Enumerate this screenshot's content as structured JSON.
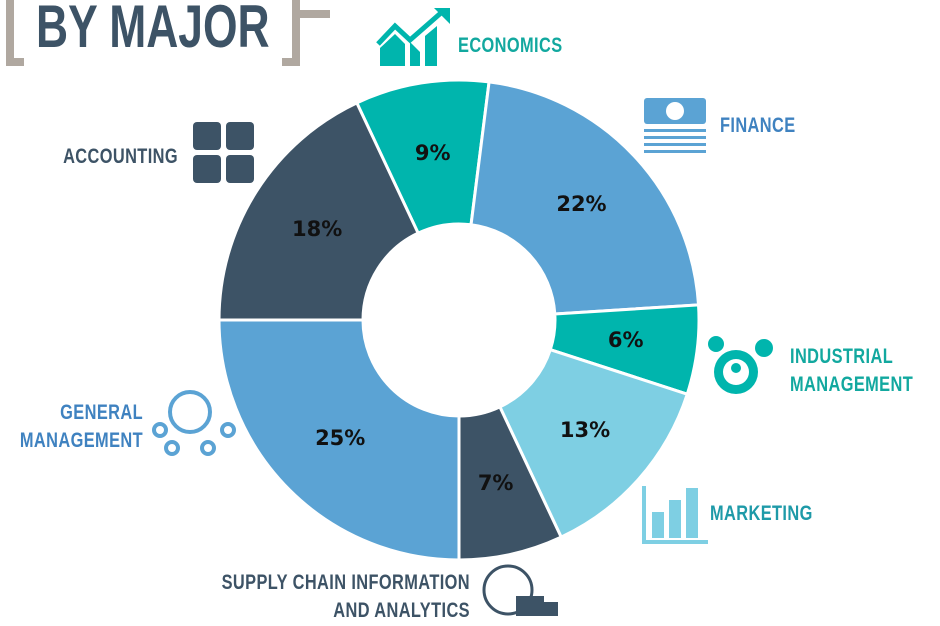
{
  "chart_data": {
    "type": "donut",
    "title": "BY MAJOR",
    "categories": [
      "ECONOMICS",
      "FINANCE",
      "INDUSTRIAL MANAGEMENT",
      "MARKETING",
      "SUPPLY CHAIN INFORMATION AND ANALYTICS",
      "GENERAL MANAGEMENT",
      "ACCOUNTING"
    ],
    "values": [
      9,
      22,
      6,
      13,
      7,
      25,
      18
    ],
    "value_labels": [
      "9%",
      "22%",
      "6%",
      "13%",
      "7%",
      "25%",
      "18%"
    ],
    "colors": [
      "#00b5ad",
      "#5ba3d4",
      "#00b5ad",
      "#7ecfe3",
      "#3d5366",
      "#5ba3d4",
      "#3d5366"
    ],
    "label_colors": [
      "#12a89f",
      "#3f82c0",
      "#12a89f",
      "#1e9aa8",
      "#3d5366",
      "#3f82c0",
      "#3d5366"
    ]
  }
}
